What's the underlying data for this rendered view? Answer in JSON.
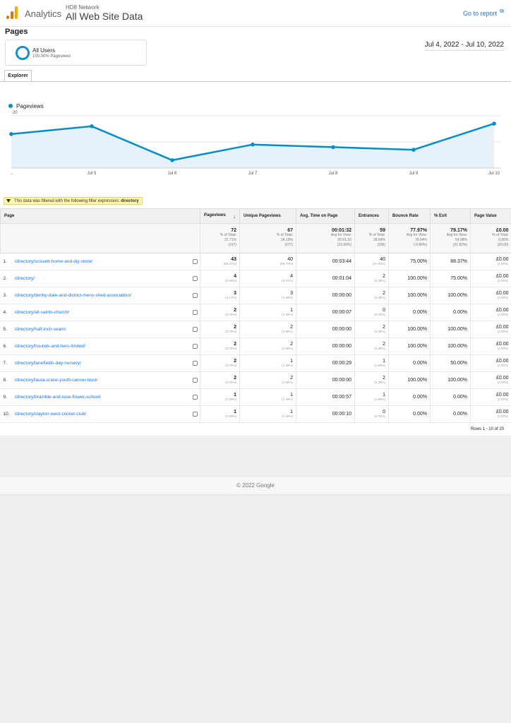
{
  "header": {
    "app_name": "Analytics",
    "account": "HD8 Network",
    "property": "All Web Site Data",
    "go_to_report": "Go to report",
    "ext_icon": "external-link-icon"
  },
  "page_title": "Pages",
  "segment": {
    "name": "All Users",
    "subtitle": "100.00% Pageviews"
  },
  "date_range": "Jul 4, 2022 - Jul 10, 2022",
  "tab": "Explorer",
  "chart_data": {
    "type": "line",
    "series": [
      {
        "name": "Pageviews",
        "values": [
          13,
          16,
          3,
          9,
          8,
          7,
          17
        ]
      }
    ],
    "x": [
      "...",
      "Jul 5",
      "Jul 6",
      "Jul 7",
      "Jul 8",
      "Jul 9",
      "Jul 10"
    ],
    "y_ticks": [
      10,
      20
    ],
    "ylim": [
      0,
      20
    ],
    "legend_position": "top-left",
    "color": "#058dc7",
    "fill": "#e6f1f9",
    "grid": true
  },
  "filter": {
    "text": "This data was filtered with the following filter expression:",
    "expression": "directory"
  },
  "table": {
    "headers": [
      "Page",
      "Pageviews",
      "Unique Pageviews",
      "Avg. Time on Page",
      "Entrances",
      "Bounce Rate",
      "% Exit",
      "Page Value"
    ],
    "totals": [
      {
        "main": "72",
        "l1": "% of Total:",
        "l2": "22.71%",
        "l3": "(317)"
      },
      {
        "main": "67",
        "l1": "% of Total:",
        "l2": "24.19%",
        "l3": "(277)"
      },
      {
        "main": "00:01:32",
        "l1": "Avg for View:",
        "l2": "00:01:16",
        "l3": "(19.99%)"
      },
      {
        "main": "59",
        "l1": "% of Total:",
        "l2": "28.64%",
        "l3": "(206)"
      },
      {
        "main": "77.97%",
        "l1": "Avg for View:",
        "l2": "78.64%",
        "l3": "(-0.86%)"
      },
      {
        "main": "79.17%",
        "l1": "Avg for View:",
        "l2": "64.98%",
        "l3": "(21.82%)"
      },
      {
        "main": "£0.00",
        "l1": "% of Total:",
        "l2": "0.00%",
        "l3": "(£0.00)"
      }
    ],
    "rows": [
      {
        "n": "1.",
        "page": "/directory/scissett-home-and-diy-store/",
        "pv": "43",
        "pv_pct": "(59.72%)",
        "upv": "40",
        "upv_pct": "(59.70%)",
        "avg": "00:03:44",
        "ent": "40",
        "ent_pct": "(67.80%)",
        "bounce": "75.00%",
        "exit": "88.37%",
        "value": "£0.00",
        "value_pct": "(0.00%)"
      },
      {
        "n": "2.",
        "page": "/directory/",
        "pv": "4",
        "pv_pct": "(5.56%)",
        "upv": "4",
        "upv_pct": "(5.97%)",
        "avg": "00:01:04",
        "ent": "2",
        "ent_pct": "(3.39%)",
        "bounce": "100.00%",
        "exit": "75.00%",
        "value": "£0.00",
        "value_pct": "(0.00%)"
      },
      {
        "n": "3.",
        "page": "/directory/denby-dale-and-district-mens-shed-association/",
        "pv": "3",
        "pv_pct": "(4.17%)",
        "upv": "3",
        "upv_pct": "(4.48%)",
        "avg": "00:00:00",
        "ent": "2",
        "ent_pct": "(3.39%)",
        "bounce": "100.00%",
        "exit": "100.00%",
        "value": "£0.00",
        "value_pct": "(0.00%)"
      },
      {
        "n": "4.",
        "page": "/directory/all-saints-church/",
        "pv": "2",
        "pv_pct": "(2.78%)",
        "upv": "1",
        "upv_pct": "(1.49%)",
        "avg": "00:00:07",
        "ent": "0",
        "ent_pct": "(0.00%)",
        "bounce": "0.00%",
        "exit": "0.00%",
        "value": "£0.00",
        "value_pct": "(0.00%)"
      },
      {
        "n": "5.",
        "page": "/directory/half-inch-seam/",
        "pv": "2",
        "pv_pct": "(2.78%)",
        "upv": "2",
        "upv_pct": "(2.99%)",
        "avg": "00:00:00",
        "ent": "2",
        "ent_pct": "(3.39%)",
        "bounce": "100.00%",
        "exit": "100.00%",
        "value": "£0.00",
        "value_pct": "(0.00%)"
      },
      {
        "n": "6.",
        "page": "/directory/hounds-and-hers-limited/",
        "pv": "2",
        "pv_pct": "(2.78%)",
        "upv": "2",
        "upv_pct": "(2.99%)",
        "avg": "00:00:00",
        "ent": "2",
        "ent_pct": "(3.39%)",
        "bounce": "100.00%",
        "exit": "100.00%",
        "value": "£0.00",
        "value_pct": "(0.00%)"
      },
      {
        "n": "7.",
        "page": "/directory/lanefields-day-nursery/",
        "pv": "2",
        "pv_pct": "(2.78%)",
        "upv": "1",
        "upv_pct": "(1.49%)",
        "avg": "00:00:29",
        "ent": "1",
        "ent_pct": "(1.69%)",
        "bounce": "0.00%",
        "exit": "50.00%",
        "value": "£0.00",
        "value_pct": "(0.00%)"
      },
      {
        "n": "8.",
        "page": "/directory/laura-crane-youth-cancer-trust/",
        "pv": "2",
        "pv_pct": "(2.78%)",
        "upv": "2",
        "upv_pct": "(2.99%)",
        "avg": "00:00:00",
        "ent": "2",
        "ent_pct": "(3.39%)",
        "bounce": "100.00%",
        "exit": "100.00%",
        "value": "£0.00",
        "value_pct": "(0.00%)"
      },
      {
        "n": "9.",
        "page": "/directory/bramble-and-rose-flower-school/",
        "pv": "1",
        "pv_pct": "(1.39%)",
        "upv": "1",
        "upv_pct": "(1.49%)",
        "avg": "00:00:57",
        "ent": "1",
        "ent_pct": "(1.69%)",
        "bounce": "0.00%",
        "exit": "0.00%",
        "value": "£0.00",
        "value_pct": "(0.00%)"
      },
      {
        "n": "10.",
        "page": "/directory/clayton-west-cricket-club/",
        "pv": "1",
        "pv_pct": "(1.39%)",
        "upv": "1",
        "upv_pct": "(1.49%)",
        "avg": "00:00:10",
        "ent": "0",
        "ent_pct": "(0.00%)",
        "bounce": "0.00%",
        "exit": "0.00%",
        "value": "£0.00",
        "value_pct": "(0.00%)"
      }
    ],
    "rows_info": "Rows 1 - 10 of 20"
  },
  "footer": "© 2022 Google"
}
